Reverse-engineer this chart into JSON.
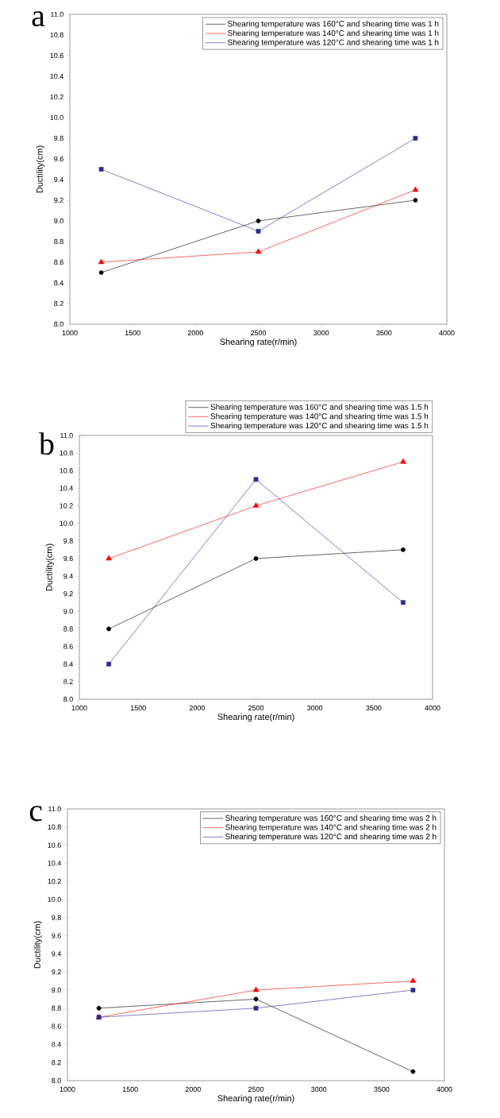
{
  "chart_data": [
    {
      "type": "line",
      "xlabel": "Shearing rate(r/min)",
      "ylabel": "Ductility(cm)",
      "annotations": [
        "a"
      ],
      "legend": "top right",
      "grid": false,
      "x": [
        1250,
        2500,
        3750
      ],
      "xlim": [
        1000,
        4000
      ],
      "ylim": [
        8.0,
        11.0
      ],
      "xticks": [
        1000,
        1500,
        2000,
        2500,
        3000,
        3500,
        4000
      ],
      "yticks": [
        {
          "value": 8.0,
          "label": "8.0"
        },
        {
          "value": 8.2,
          "label": "8.2"
        },
        {
          "value": 8.4,
          "label": "8.4"
        },
        {
          "value": 8.6,
          "label": "8.6"
        },
        {
          "value": 8.8,
          "label": "8.8"
        },
        {
          "value": 9.0,
          "label": "9.0"
        },
        {
          "value": 9.2,
          "label": "9.2"
        },
        {
          "value": 9.4,
          "label": "9.4"
        },
        {
          "value": 9.6,
          "label": "9.6"
        },
        {
          "value": 9.8,
          "label": "9.8"
        },
        {
          "value": 10.0,
          "label": "10.0"
        },
        {
          "value": 10.2,
          "label": "10.2"
        },
        {
          "value": 10.4,
          "label": "10.4"
        },
        {
          "value": 10.6,
          "label": "10.6"
        },
        {
          "value": 10.8,
          "label": "10.8"
        },
        {
          "value": 11.0,
          "label": "11.0"
        }
      ],
      "series": [
        {
          "name": "Shearing temperature was 160°C and shearing time was 1 h",
          "color": "#000000",
          "marker": "circle",
          "values": [
            8.5,
            9.0,
            9.2
          ]
        },
        {
          "name": "Shearing temperature was 140°C and shearing time was 1 h",
          "color": "#ff0000",
          "marker": "triangle",
          "values": [
            8.6,
            8.7,
            9.3
          ]
        },
        {
          "name": "Shearing temperature was 120°C and shearing time was 1 h",
          "color": "#2b2b9a",
          "marker": "square",
          "values": [
            9.5,
            8.9,
            9.8
          ]
        }
      ]
    },
    {
      "type": "line",
      "xlabel": "Shearing rate(r/min)",
      "ylabel": "Ductility(cm)",
      "annotations": [
        "b"
      ],
      "legend": "top",
      "grid": false,
      "x": [
        1250,
        2500,
        3750
      ],
      "xlim": [
        1000,
        4000
      ],
      "ylim": [
        8.0,
        11.0
      ],
      "xticks": [
        1000,
        1500,
        2000,
        2500,
        3000,
        3500,
        4000
      ],
      "yticks": [
        {
          "value": 8.0,
          "label": "8.0"
        },
        {
          "value": 8.2,
          "label": "8.2"
        },
        {
          "value": 8.4,
          "label": "8.4"
        },
        {
          "value": 8.6,
          "label": "8.6"
        },
        {
          "value": 8.8,
          "label": "8.8"
        },
        {
          "value": 9.0,
          "label": "9.0"
        },
        {
          "value": 9.2,
          "label": "9.2"
        },
        {
          "value": 9.4,
          "label": "9.4"
        },
        {
          "value": 9.6,
          "label": "9.6"
        },
        {
          "value": 9.8,
          "label": "9.8"
        },
        {
          "value": 10.0,
          "label": "10.0"
        },
        {
          "value": 10.2,
          "label": "10.2"
        },
        {
          "value": 10.4,
          "label": "10.4"
        },
        {
          "value": 10.6,
          "label": "10.6"
        },
        {
          "value": 10.8,
          "label": "10.8"
        },
        {
          "value": 11.0,
          "label": "11.0"
        }
      ],
      "series": [
        {
          "name": "Shearing temperature was 160°C and shearing time was 1.5 h",
          "color": "#000000",
          "marker": "circle",
          "values": [
            8.8,
            9.6,
            9.7
          ]
        },
        {
          "name": "Shearing temperature was 140°C and shearing time was 1.5 h",
          "color": "#ff0000",
          "marker": "triangle",
          "values": [
            9.6,
            10.2,
            10.7
          ]
        },
        {
          "name": "Shearing temperature was 120°C and shearing time was 1.5 h",
          "color": "#2b2b9a",
          "marker": "square",
          "values": [
            8.4,
            10.5,
            9.1
          ]
        }
      ]
    },
    {
      "type": "line",
      "xlabel": "Shearing rate(r/min)",
      "ylabel": "Ductility(cm)",
      "annotations": [
        "c"
      ],
      "legend": "top right",
      "grid": false,
      "x": [
        1250,
        2500,
        3750
      ],
      "xlim": [
        1000,
        4000
      ],
      "ylim": [
        8.0,
        11.0
      ],
      "xticks": [
        1000,
        1500,
        2000,
        2500,
        3000,
        3500,
        4000
      ],
      "yticks": [
        {
          "value": 8.0,
          "label": "8.0"
        },
        {
          "value": 8.2,
          "label": "8.2"
        },
        {
          "value": 8.4,
          "label": "8.4"
        },
        {
          "value": 8.6,
          "label": "8.6"
        },
        {
          "value": 8.8,
          "label": "8.8"
        },
        {
          "value": 9.0,
          "label": "9.0"
        },
        {
          "value": 9.2,
          "label": "9.2"
        },
        {
          "value": 9.4,
          "label": "9.4"
        },
        {
          "value": 9.6,
          "label": "9.6"
        },
        {
          "value": 9.8,
          "label": "9.8"
        },
        {
          "value": 10.0,
          "label": "10.0"
        },
        {
          "value": 10.2,
          "label": "10.2"
        },
        {
          "value": 10.4,
          "label": "10.4"
        },
        {
          "value": 10.6,
          "label": "10.6"
        },
        {
          "value": 10.8,
          "label": "10.8"
        },
        {
          "value": 11.0,
          "label": "11.0"
        }
      ],
      "series": [
        {
          "name": "Shearing temperature was 160°C and shearing time was 2 h",
          "color": "#000000",
          "marker": "circle",
          "values": [
            8.8,
            8.9,
            8.1
          ]
        },
        {
          "name": "Shearing temperature was 140°C and shearing time was 2 h",
          "color": "#ff0000",
          "marker": "triangle",
          "values": [
            8.7,
            9.0,
            9.1
          ]
        },
        {
          "name": "Shearing temperature was 120°C and shearing time was 2 h",
          "color": "#2b2b9a",
          "marker": "square",
          "values": [
            8.7,
            8.8,
            9.0
          ]
        }
      ]
    }
  ]
}
